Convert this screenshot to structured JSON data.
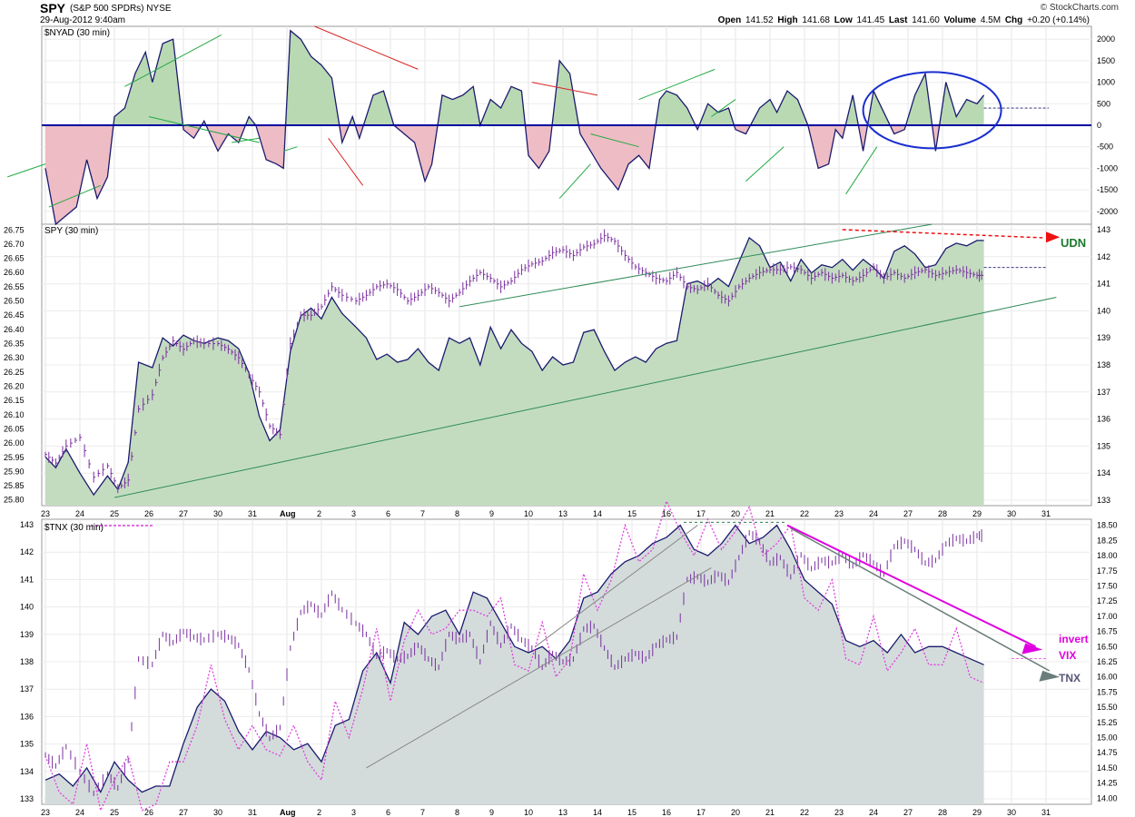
{
  "header": {
    "symbol": "SPY",
    "fullname": "(S&P 500 SPDRs)",
    "exchange": "NYSE",
    "timestamp": "29-Aug-2012 9:40am",
    "logo": "© StockCharts.com",
    "open_label": "Open",
    "open": "141.52",
    "high_label": "High",
    "high": "141.68",
    "low_label": "Low",
    "low": "141.45",
    "last_label": "Last",
    "last": "141.60",
    "volume_label": "Volume",
    "volume": "4.5M",
    "chg_label": "Chg",
    "chg": "+0.20 (+0.14%)"
  },
  "date_labels": [
    "23",
    "24",
    "25",
    "26",
    "27",
    "30",
    "31",
    "Aug",
    "2",
    "3",
    "6",
    "7",
    "8",
    "9",
    "10",
    "13",
    "14",
    "15",
    "16",
    "17",
    "20",
    "21",
    "22",
    "23",
    "24",
    "27",
    "28",
    "29",
    "30",
    "31"
  ],
  "chart_data": [
    {
      "type": "area",
      "title": "$NYAD (30 min)",
      "ylim": [
        -2300,
        2300
      ],
      "yticks": [
        2000,
        1500,
        1000,
        500,
        0,
        -500,
        -1000,
        -1500,
        -2000
      ],
      "ytick_labels": [
        "2000",
        "1500",
        "1000",
        "500",
        "0",
        "-500",
        "-1000",
        "-1500",
        "-2000"
      ],
      "colors": {
        "positive": "#b9d9b3",
        "negative": "#eebcc4",
        "line": "#1a1a6e",
        "zero": "#0000a0"
      },
      "series": [
        {
          "x": [
            0,
            0.3,
            0.6,
            0.9,
            1.2,
            1.5,
            1.8,
            2.0,
            2.3,
            2.6,
            2.9,
            3.1,
            3.4,
            3.7,
            4.0,
            4.3,
            4.6,
            5.0,
            5.3,
            5.6,
            5.9,
            6.1,
            6.4,
            6.7,
            6.9,
            7.1,
            7.4,
            7.7,
            8.0,
            8.3,
            8.6,
            8.9,
            9.1,
            9.5,
            9.8,
            10.1,
            10.4,
            10.7,
            11.0,
            11.2,
            11.5,
            11.8,
            12.1,
            12.4,
            12.6,
            12.9,
            13.2,
            13.5,
            13.8,
            14.0,
            14.3,
            14.6,
            14.9,
            15.2,
            15.5,
            15.8,
            16.1,
            16.4,
            16.6,
            16.9,
            17.2,
            17.5,
            17.8,
            18.0,
            18.3,
            18.6,
            18.9,
            19.2,
            19.5,
            19.8,
            20.0,
            20.3,
            20.5,
            20.7,
            21.0,
            21.2,
            21.5,
            21.8,
            22.1,
            22.4,
            22.7,
            22.9,
            23.1,
            23.4,
            23.7,
            24.0,
            24.3,
            24.6,
            24.9,
            25.2,
            25.5,
            25.8,
            26.1,
            26.4,
            26.7,
            27.0,
            27.2
          ],
          "values": [
            -1000,
            -2300,
            -2100,
            -1900,
            -800,
            -1700,
            -1200,
            200,
            400,
            1200,
            1700,
            1000,
            1900,
            2000,
            -100,
            -300,
            100,
            -600,
            -200,
            -400,
            200,
            0,
            -800,
            -900,
            -1000,
            2200,
            2000,
            1600,
            1400,
            1100,
            -400,
            200,
            -300,
            700,
            800,
            0,
            -200,
            -400,
            -1300,
            -900,
            700,
            600,
            700,
            900,
            0,
            600,
            400,
            900,
            800,
            -700,
            -1000,
            -600,
            1500,
            1200,
            -200,
            -600,
            -1000,
            -1300,
            -1500,
            -900,
            -700,
            -1000,
            600,
            800,
            700,
            400,
            -100,
            500,
            300,
            400,
            -100,
            -200,
            100,
            400,
            600,
            300,
            800,
            600,
            0,
            -1000,
            -900,
            -100,
            -300,
            700,
            -600,
            800,
            300,
            -200,
            -100,
            700,
            1200,
            -600,
            1000,
            200,
            600,
            500,
            700
          ],
          "legend": "$NYAD (30 min)"
        }
      ],
      "annotations": [
        "red and green trendlines",
        "blue circle around 23-29 Aug cluster"
      ]
    },
    {
      "type": "area",
      "title": "SPY (30 min)",
      "legend_right": "UDN",
      "ylim": [
        132.8,
        143.2
      ],
      "yticks": [
        143,
        142,
        141,
        140,
        139,
        138,
        137,
        136,
        135,
        134,
        133
      ],
      "ytick_labels": [
        "143",
        "142",
        "141",
        "140",
        "139",
        "138",
        "137",
        "136",
        "135",
        "134",
        "133"
      ],
      "y2lim": [
        25.78,
        26.77
      ],
      "y2ticks": [
        26.75,
        26.7,
        26.65,
        26.6,
        26.55,
        26.5,
        26.45,
        26.4,
        26.35,
        26.3,
        26.25,
        26.2,
        26.15,
        26.1,
        26.05,
        26.0,
        25.95,
        25.9,
        25.85,
        25.8
      ],
      "y2tick_labels": [
        "26.75",
        "26.70",
        "26.65",
        "26.60",
        "26.55",
        "26.50",
        "26.45",
        "26.40",
        "26.35",
        "26.30",
        "26.25",
        "26.20",
        "26.15",
        "26.10",
        "26.05",
        "26.00",
        "25.95",
        "25.90",
        "25.85",
        "25.80"
      ],
      "colors": {
        "fill": "#c3dcc0",
        "line": "#1a1a6e",
        "bars": "#7a2fa0",
        "trend": "#2e8b57",
        "arrow": "#ee1111"
      },
      "spy": {
        "x": [
          0,
          0.3,
          0.6,
          1.0,
          1.4,
          1.8,
          2.1,
          2.4,
          2.7,
          3.1,
          3.4,
          3.7,
          4.0,
          4.3,
          4.6,
          5.0,
          5.3,
          5.6,
          5.9,
          6.2,
          6.5,
          6.8,
          7.1,
          7.4,
          7.7,
          8.0,
          8.3,
          8.6,
          9.0,
          9.3,
          9.6,
          9.9,
          10.2,
          10.5,
          10.8,
          11.1,
          11.4,
          11.7,
          12.0,
          12.3,
          12.6,
          12.9,
          13.2,
          13.5,
          13.8,
          14.1,
          14.4,
          14.7,
          15.0,
          15.3,
          15.6,
          15.9,
          16.2,
          16.5,
          16.8,
          17.1,
          17.4,
          17.7,
          18.0,
          18.3,
          18.6,
          18.9,
          19.2,
          19.5,
          19.8,
          20.1,
          20.4,
          20.7,
          21.0,
          21.3,
          21.6,
          21.9,
          22.2,
          22.5,
          22.8,
          23.1,
          23.4,
          23.7,
          24.0,
          24.3,
          24.6,
          24.9,
          25.2,
          25.5,
          25.8,
          26.1,
          26.4,
          26.7,
          27.0,
          27.2
        ],
        "values": [
          134.6,
          134.2,
          134.9,
          134.0,
          133.2,
          133.9,
          133.4,
          134.4,
          138.1,
          137.9,
          139.0,
          138.7,
          139.1,
          138.9,
          138.8,
          139.0,
          138.9,
          138.6,
          137.7,
          136.1,
          135.2,
          135.6,
          138.5,
          139.8,
          140.1,
          139.7,
          140.5,
          139.9,
          139.4,
          139.0,
          138.2,
          138.4,
          138.1,
          138.2,
          138.6,
          138.1,
          137.8,
          139.0,
          138.8,
          139.0,
          138.0,
          139.4,
          138.6,
          139.3,
          138.8,
          138.5,
          137.8,
          138.3,
          138.0,
          138.1,
          139.2,
          139.3,
          138.5,
          137.8,
          138.1,
          138.3,
          138.1,
          138.6,
          138.8,
          138.9,
          141.0,
          141.1,
          140.9,
          141.2,
          140.9,
          141.8,
          142.7,
          142.4,
          141.6,
          141.8,
          141.1,
          141.9,
          141.4,
          141.7,
          141.6,
          141.9,
          141.5,
          141.9,
          141.6,
          141.2,
          142.2,
          142.4,
          142.1,
          141.6,
          141.7,
          142.3,
          142.5,
          142.4,
          142.6,
          142.6
        ]
      },
      "udn": {
        "x": [
          0,
          0.3,
          0.6,
          1.0,
          1.4,
          1.8,
          2.1,
          2.4,
          2.7,
          3.1,
          3.4,
          3.7,
          4.0,
          4.3,
          4.6,
          5.0,
          5.3,
          5.6,
          5.9,
          6.2,
          6.5,
          6.8,
          7.1,
          7.4,
          7.7,
          8.0,
          8.3,
          8.6,
          9.0,
          9.3,
          9.6,
          9.9,
          10.2,
          10.5,
          10.8,
          11.1,
          11.4,
          11.7,
          12.0,
          12.3,
          12.6,
          12.9,
          13.2,
          13.5,
          13.8,
          14.1,
          14.4,
          14.7,
          15.0,
          15.3,
          15.6,
          15.9,
          16.2,
          16.5,
          16.8,
          17.1,
          17.4,
          17.7,
          18.0,
          18.3,
          18.6,
          18.9,
          19.2,
          19.5,
          19.8,
          20.1,
          20.4,
          20.7,
          21.0,
          21.3,
          21.6,
          21.9,
          22.2,
          22.5,
          22.8,
          23.1,
          23.4,
          23.7,
          24.0,
          24.3,
          24.6,
          24.9,
          25.2,
          25.5,
          25.8,
          26.1,
          26.4,
          26.7,
          27.0,
          27.2
        ],
        "values": [
          25.96,
          25.93,
          25.99,
          26.02,
          25.88,
          25.92,
          25.84,
          25.87,
          26.12,
          26.17,
          26.3,
          26.36,
          26.33,
          26.36,
          26.35,
          26.35,
          26.33,
          26.3,
          26.24,
          26.18,
          26.06,
          26.03,
          26.35,
          26.45,
          26.45,
          26.48,
          26.55,
          26.52,
          26.5,
          26.52,
          26.55,
          26.56,
          26.54,
          26.5,
          26.52,
          26.55,
          26.53,
          26.5,
          26.53,
          26.57,
          26.6,
          26.58,
          26.55,
          26.57,
          26.61,
          26.63,
          26.64,
          26.67,
          26.68,
          26.66,
          26.69,
          26.7,
          26.73,
          26.71,
          26.66,
          26.62,
          26.6,
          26.58,
          26.57,
          26.6,
          26.55,
          26.54,
          26.56,
          26.52,
          26.5,
          26.55,
          26.58,
          26.6,
          26.61,
          26.61,
          26.62,
          26.61,
          26.58,
          26.6,
          26.58,
          26.59,
          26.57,
          26.59,
          26.62,
          26.58,
          26.6,
          26.58,
          26.6,
          26.61,
          26.59,
          26.6,
          26.61,
          26.6,
          26.59,
          26.59
        ]
      }
    },
    {
      "type": "area",
      "title": "$TNX (30 min)",
      "labels_right": [
        "invert",
        "VIX",
        "TNX"
      ],
      "ylim": [
        132.8,
        143.2
      ],
      "yticks": [
        143,
        142,
        141,
        140,
        139,
        138,
        137,
        136,
        135,
        134,
        133
      ],
      "ytick_labels": [
        "143",
        "142",
        "141",
        "140",
        "139",
        "138",
        "137",
        "136",
        "135",
        "134",
        "133"
      ],
      "y2lim": [
        13.9,
        18.6
      ],
      "y2ticks": [
        18.5,
        18.25,
        18.0,
        17.75,
        17.5,
        17.25,
        17.0,
        16.75,
        16.5,
        16.25,
        16.0,
        15.75,
        15.5,
        15.25,
        15.0,
        14.75,
        14.5,
        14.25,
        14.0
      ],
      "y2tick_labels": [
        "18.50",
        "18.25",
        "18.00",
        "17.75",
        "17.50",
        "17.25",
        "17.00",
        "16.75",
        "16.50",
        "16.25",
        "16.00",
        "15.75",
        "15.50",
        "15.25",
        "15.00",
        "14.75",
        "14.50",
        "14.25",
        "14.00"
      ],
      "colors": {
        "fill": "#d3dcdb",
        "line": "#1a1a6e",
        "bars": "#7a2fa0",
        "vix": "#e040e0",
        "trend": "#888888",
        "arrow": "#e000e0",
        "arrow2": "#6a7d7a"
      },
      "tnx": {
        "x": [
          0,
          0.4,
          0.8,
          1.2,
          1.6,
          2.0,
          2.4,
          2.8,
          3.2,
          3.6,
          4.0,
          4.4,
          4.8,
          5.2,
          5.6,
          6.0,
          6.4,
          6.8,
          7.2,
          7.6,
          8.0,
          8.4,
          8.8,
          9.2,
          9.6,
          10.0,
          10.4,
          10.8,
          11.2,
          11.6,
          12.0,
          12.4,
          12.8,
          13.2,
          13.6,
          14.0,
          14.4,
          14.8,
          15.2,
          15.6,
          16.0,
          16.4,
          16.8,
          17.2,
          17.6,
          18.0,
          18.4,
          18.8,
          19.2,
          19.6,
          20.0,
          20.4,
          20.8,
          21.2,
          21.6,
          22.0,
          22.4,
          22.8,
          23.2,
          23.6,
          24.0,
          24.4,
          24.8,
          25.2,
          25.6,
          26.0,
          26.4,
          26.8,
          27.2
        ],
        "values": [
          14.3,
          14.4,
          14.2,
          14.5,
          14.1,
          14.6,
          14.3,
          14.1,
          14.2,
          14.2,
          14.9,
          15.5,
          15.8,
          15.6,
          15.1,
          14.8,
          15.1,
          15.0,
          14.8,
          14.9,
          14.6,
          15.2,
          15.3,
          16.1,
          16.4,
          15.9,
          16.9,
          16.7,
          17.0,
          17.1,
          16.7,
          17.4,
          17.3,
          16.9,
          16.5,
          16.4,
          16.5,
          16.3,
          16.6,
          17.3,
          17.4,
          17.7,
          17.9,
          18.0,
          18.2,
          18.3,
          18.5,
          18.1,
          18.0,
          18.2,
          18.5,
          18.2,
          18.3,
          18.5,
          18.1,
          17.6,
          17.4,
          17.2,
          16.6,
          16.5,
          16.6,
          16.4,
          16.7,
          16.4,
          16.5,
          16.5,
          16.4,
          16.3,
          16.2
        ]
      }
    }
  ]
}
